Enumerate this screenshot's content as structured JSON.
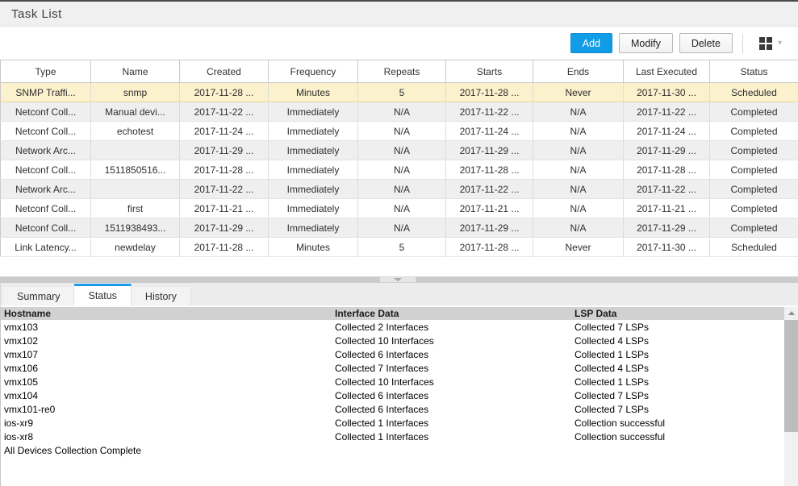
{
  "panel": {
    "title": "Task List"
  },
  "toolbar": {
    "add_label": "Add",
    "modify_label": "Modify",
    "delete_label": "Delete"
  },
  "colors": {
    "accent_blue": "#119ce8",
    "selected_row_bg": "#fbf1cd",
    "active_tab_border": "#1a9ceb"
  },
  "icons": {
    "columns_button": "grid-icon",
    "columns_chevron": "chevron-down-icon",
    "splitter_collapse": "collapse-down-icon",
    "scrollbar_up": "scroll-up-icon"
  },
  "task_table": {
    "columns": [
      "Type",
      "Name",
      "Created",
      "Frequency",
      "Repeats",
      "Starts",
      "Ends",
      "Last Executed",
      "Status"
    ],
    "rows": [
      {
        "selected": true,
        "cells": [
          "SNMP Traffi...",
          "snmp",
          "2017-11-28 ...",
          "Minutes",
          "5",
          "2017-11-28 ...",
          "Never",
          "2017-11-30 ...",
          "Scheduled"
        ]
      },
      {
        "selected": false,
        "cells": [
          "Netconf Coll...",
          "Manual devi...",
          "2017-11-22 ...",
          "Immediately",
          "N/A",
          "2017-11-22 ...",
          "N/A",
          "2017-11-22 ...",
          "Completed"
        ]
      },
      {
        "selected": false,
        "cells": [
          "Netconf Coll...",
          "echotest",
          "2017-11-24 ...",
          "Immediately",
          "N/A",
          "2017-11-24 ...",
          "N/A",
          "2017-11-24 ...",
          "Completed"
        ]
      },
      {
        "selected": false,
        "cells": [
          "Network Arc...",
          "",
          "2017-11-29 ...",
          "Immediately",
          "N/A",
          "2017-11-29 ...",
          "N/A",
          "2017-11-29 ...",
          "Completed"
        ]
      },
      {
        "selected": false,
        "cells": [
          "Netconf Coll...",
          "1511850516...",
          "2017-11-28 ...",
          "Immediately",
          "N/A",
          "2017-11-28 ...",
          "N/A",
          "2017-11-28 ...",
          "Completed"
        ]
      },
      {
        "selected": false,
        "cells": [
          "Network Arc...",
          "",
          "2017-11-22 ...",
          "Immediately",
          "N/A",
          "2017-11-22 ...",
          "N/A",
          "2017-11-22 ...",
          "Completed"
        ]
      },
      {
        "selected": false,
        "cells": [
          "Netconf Coll...",
          "first",
          "2017-11-21 ...",
          "Immediately",
          "N/A",
          "2017-11-21 ...",
          "N/A",
          "2017-11-21 ...",
          "Completed"
        ]
      },
      {
        "selected": false,
        "cells": [
          "Netconf Coll...",
          "1511938493...",
          "2017-11-29 ...",
          "Immediately",
          "N/A",
          "2017-11-29 ...",
          "N/A",
          "2017-11-29 ...",
          "Completed"
        ]
      },
      {
        "selected": false,
        "cells": [
          "Link Latency...",
          "newdelay",
          "2017-11-28 ...",
          "Minutes",
          "5",
          "2017-11-28 ...",
          "Never",
          "2017-11-30 ...",
          "Scheduled"
        ]
      }
    ]
  },
  "tabs": [
    {
      "label": "Summary",
      "active": false
    },
    {
      "label": "Status",
      "active": true
    },
    {
      "label": "History",
      "active": false
    }
  ],
  "status_grid": {
    "columns": [
      "Hostname",
      "Interface Data",
      "LSP Data"
    ],
    "rows": [
      [
        "vmx103",
        "Collected 2 Interfaces",
        "Collected 7 LSPs"
      ],
      [
        "vmx102",
        "Collected 10 Interfaces",
        "Collected 4 LSPs"
      ],
      [
        "vmx107",
        "Collected 6 Interfaces",
        "Collected 1 LSPs"
      ],
      [
        "vmx106",
        "Collected 7 Interfaces",
        "Collected 4 LSPs"
      ],
      [
        "vmx105",
        "Collected 10 Interfaces",
        "Collected 1 LSPs"
      ],
      [
        "vmx104",
        "Collected 6 Interfaces",
        "Collected 7 LSPs"
      ],
      [
        "vmx101-re0",
        "Collected 6 Interfaces",
        "Collected 7 LSPs"
      ],
      [
        "ios-xr9",
        "Collected 1 Interfaces",
        "Collection successful"
      ],
      [
        "ios-xr8",
        "Collected 1 Interfaces",
        "Collection successful"
      ],
      [
        "All Devices Collection Complete",
        "",
        ""
      ]
    ]
  }
}
